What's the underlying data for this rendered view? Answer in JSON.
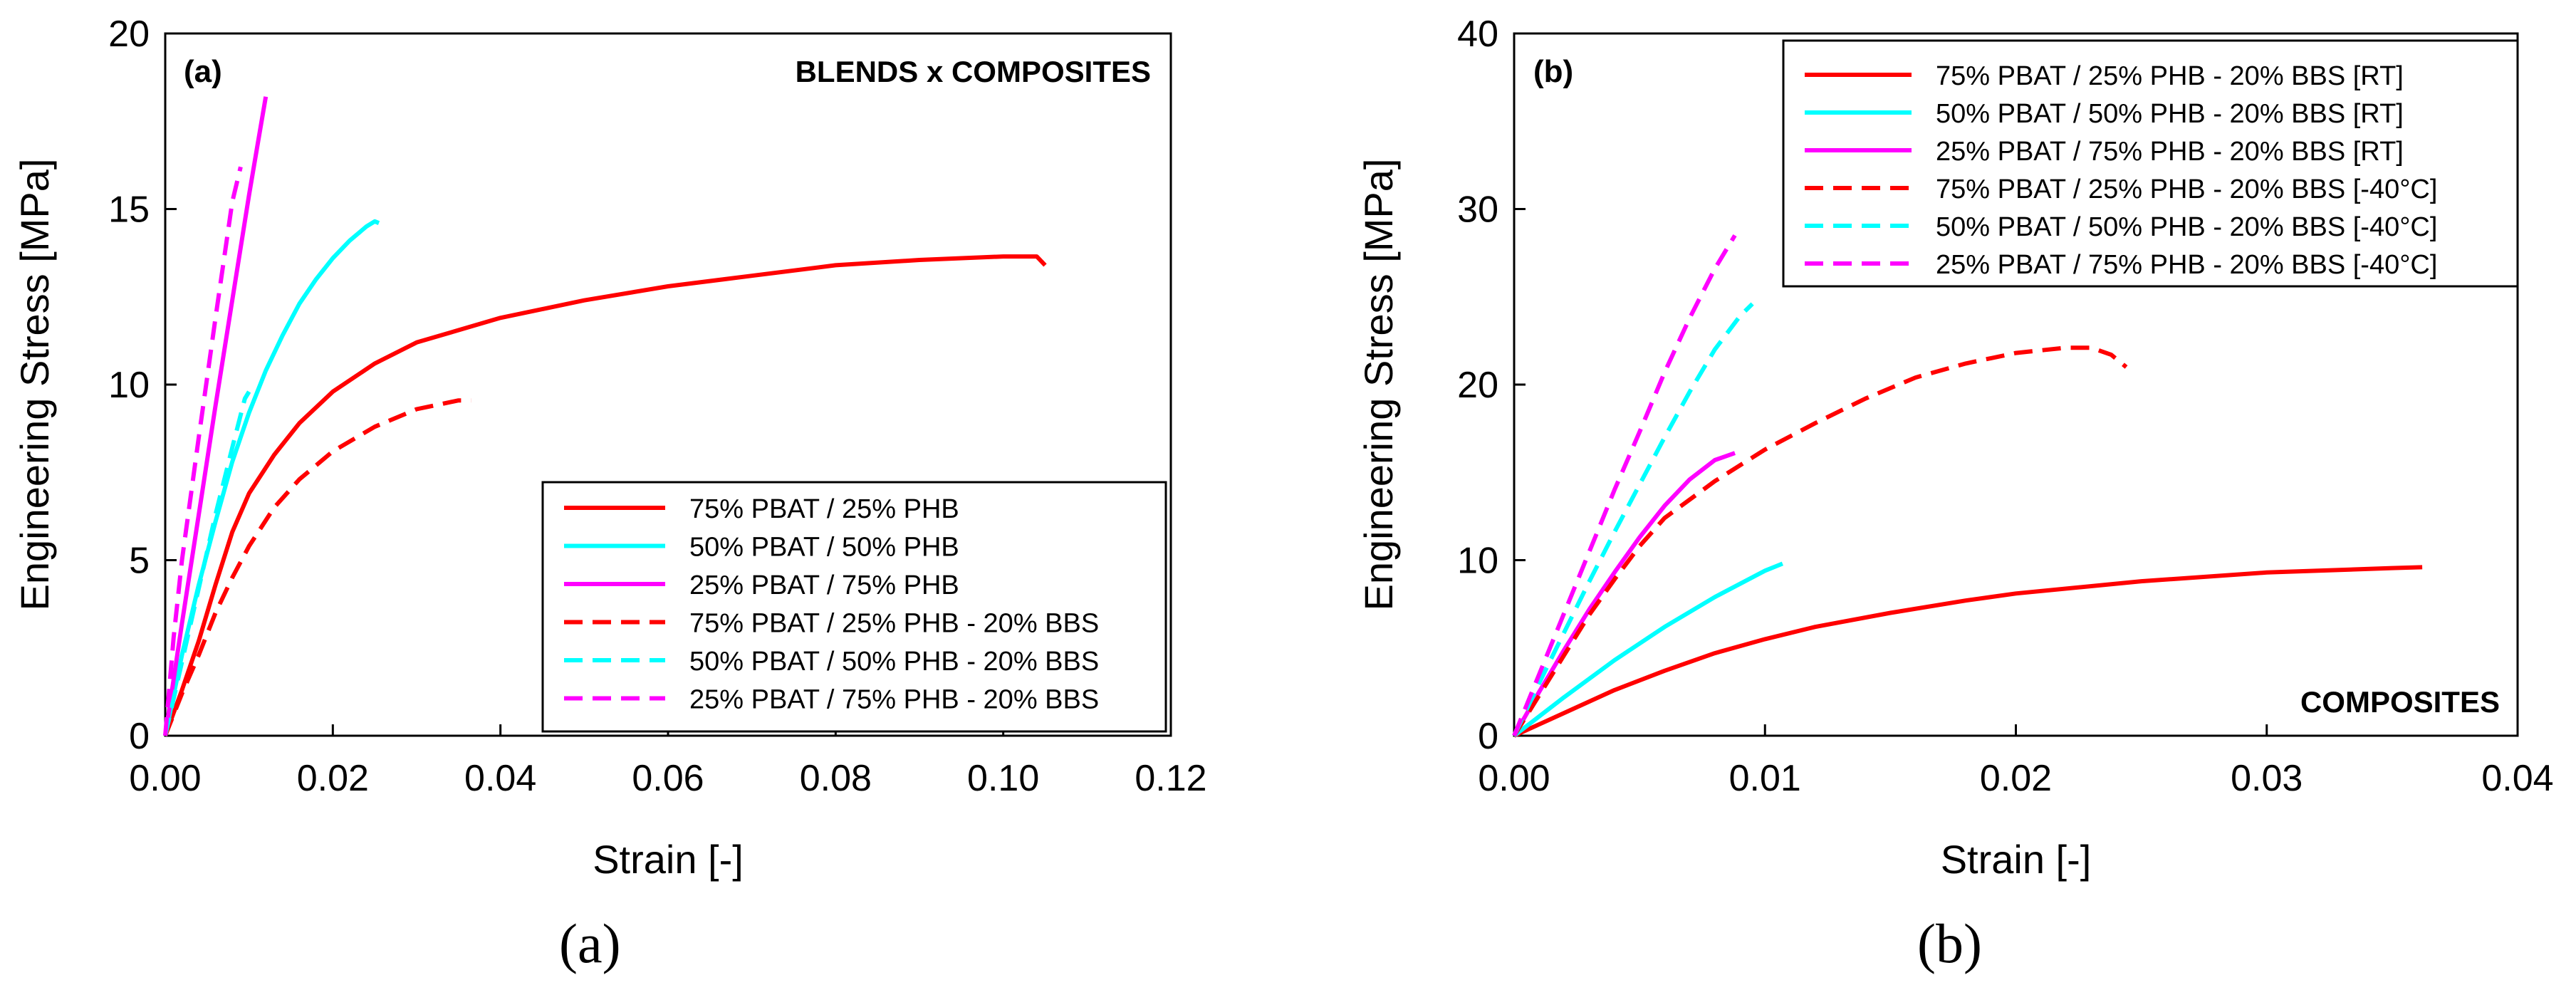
{
  "chart_data": [
    {
      "type": "line",
      "panel_label": "(a)",
      "annotation": "BLENDS x COMPOSITES",
      "caption": "(a)",
      "xlabel": "Strain [-]",
      "ylabel": "Engineering Stress [MPa]",
      "xlim": [
        0,
        0.12
      ],
      "ylim": [
        0,
        20
      ],
      "xticks": [
        0,
        0.02,
        0.04,
        0.06,
        0.08,
        0.1,
        0.12
      ],
      "xtick_labels": [
        "0.00",
        "0.02",
        "0.04",
        "0.06",
        "0.08",
        "0.10",
        "0.12"
      ],
      "yticks": [
        0,
        5,
        10,
        15,
        20
      ],
      "ytick_labels": [
        "0",
        "5",
        "10",
        "15",
        "20"
      ],
      "legend_position": "lower-right",
      "series": [
        {
          "name": "75% PBAT / 25% PHB",
          "color": "#ff0000",
          "dash": "solid",
          "points": [
            [
              0,
              0
            ],
            [
              0.002,
              1.3
            ],
            [
              0.004,
              2.7
            ],
            [
              0.006,
              4.3
            ],
            [
              0.008,
              5.8
            ],
            [
              0.01,
              6.9
            ],
            [
              0.013,
              8.0
            ],
            [
              0.016,
              8.9
            ],
            [
              0.02,
              9.8
            ],
            [
              0.025,
              10.6
            ],
            [
              0.03,
              11.2
            ],
            [
              0.04,
              11.9
            ],
            [
              0.05,
              12.4
            ],
            [
              0.06,
              12.8
            ],
            [
              0.07,
              13.1
            ],
            [
              0.08,
              13.4
            ],
            [
              0.09,
              13.55
            ],
            [
              0.1,
              13.65
            ],
            [
              0.104,
              13.65
            ],
            [
              0.105,
              13.4
            ]
          ]
        },
        {
          "name": "50% PBAT / 50% PHB",
          "color": "#00ffff",
          "dash": "solid",
          "points": [
            [
              0,
              0
            ],
            [
              0.002,
              2.3
            ],
            [
              0.004,
              4.3
            ],
            [
              0.006,
              6.1
            ],
            [
              0.008,
              7.8
            ],
            [
              0.01,
              9.2
            ],
            [
              0.012,
              10.4
            ],
            [
              0.014,
              11.4
            ],
            [
              0.016,
              12.3
            ],
            [
              0.018,
              13.0
            ],
            [
              0.02,
              13.6
            ],
            [
              0.022,
              14.1
            ],
            [
              0.024,
              14.5
            ],
            [
              0.025,
              14.65
            ],
            [
              0.0255,
              14.6
            ]
          ]
        },
        {
          "name": "25% PBAT / 75% PHB",
          "color": "#ff00ff",
          "dash": "solid",
          "points": [
            [
              0,
              0
            ],
            [
              0.002,
              3.2
            ],
            [
              0.004,
              6.3
            ],
            [
              0.006,
              9.4
            ],
            [
              0.008,
              12.4
            ],
            [
              0.01,
              15.4
            ],
            [
              0.011,
              16.8
            ],
            [
              0.012,
              18.2
            ]
          ]
        },
        {
          "name": "75% PBAT / 25% PHB - 20% BBS",
          "color": "#ff0000",
          "dash": "dashed",
          "points": [
            [
              0,
              0
            ],
            [
              0.002,
              1.2
            ],
            [
              0.004,
              2.3
            ],
            [
              0.006,
              3.5
            ],
            [
              0.008,
              4.5
            ],
            [
              0.01,
              5.4
            ],
            [
              0.013,
              6.5
            ],
            [
              0.016,
              7.3
            ],
            [
              0.02,
              8.1
            ],
            [
              0.025,
              8.8
            ],
            [
              0.03,
              9.3
            ],
            [
              0.035,
              9.55
            ],
            [
              0.0365,
              9.55
            ]
          ]
        },
        {
          "name": "50% PBAT / 50% PHB - 20% BBS",
          "color": "#00ffff",
          "dash": "dashed",
          "points": [
            [
              0,
              0
            ],
            [
              0.002,
              2.1
            ],
            [
              0.004,
              4.2
            ],
            [
              0.006,
              6.3
            ],
            [
              0.008,
              8.2
            ],
            [
              0.0095,
              9.6
            ],
            [
              0.01,
              9.8
            ]
          ]
        },
        {
          "name": "25% PBAT / 75% PHB - 20% BBS",
          "color": "#ff00ff",
          "dash": "dashed",
          "points": [
            [
              0,
              0
            ],
            [
              0.001,
              2.8
            ],
            [
              0.002,
              5.0
            ],
            [
              0.004,
              8.5
            ],
            [
              0.006,
              11.9
            ],
            [
              0.008,
              15.2
            ],
            [
              0.009,
              16.2
            ]
          ]
        }
      ]
    },
    {
      "type": "line",
      "panel_label": "(b)",
      "annotation": "COMPOSITES",
      "caption": "(b)",
      "xlabel": "Strain [-]",
      "ylabel": "Engineering Stress [MPa]",
      "xlim": [
        0,
        0.04
      ],
      "ylim": [
        0,
        40
      ],
      "xticks": [
        0,
        0.01,
        0.02,
        0.03,
        0.04
      ],
      "xtick_labels": [
        "0.00",
        "0.01",
        "0.02",
        "0.03",
        "0.04"
      ],
      "yticks": [
        0,
        10,
        20,
        30,
        40
      ],
      "ytick_labels": [
        "0",
        "10",
        "20",
        "30",
        "40"
      ],
      "legend_position": "top-right",
      "series": [
        {
          "name": "75% PBAT / 25% PHB - 20% BBS [RT]",
          "color": "#ff0000",
          "dash": "solid",
          "points": [
            [
              0,
              0
            ],
            [
              0.002,
              1.3
            ],
            [
              0.004,
              2.6
            ],
            [
              0.006,
              3.7
            ],
            [
              0.008,
              4.7
            ],
            [
              0.01,
              5.5
            ],
            [
              0.012,
              6.2
            ],
            [
              0.015,
              7.0
            ],
            [
              0.018,
              7.7
            ],
            [
              0.02,
              8.1
            ],
            [
              0.025,
              8.8
            ],
            [
              0.03,
              9.3
            ],
            [
              0.035,
              9.55
            ],
            [
              0.0362,
              9.6
            ]
          ]
        },
        {
          "name": "50% PBAT / 50% PHB - 20% BBS [RT]",
          "color": "#00ffff",
          "dash": "solid",
          "points": [
            [
              0,
              0
            ],
            [
              0.002,
              2.2
            ],
            [
              0.004,
              4.3
            ],
            [
              0.006,
              6.2
            ],
            [
              0.008,
              7.9
            ],
            [
              0.01,
              9.4
            ],
            [
              0.0107,
              9.8
            ]
          ]
        },
        {
          "name": "25% PBAT / 75% PHB - 20% BBS [RT]",
          "color": "#ff00ff",
          "dash": "solid",
          "points": [
            [
              0,
              0
            ],
            [
              0.001,
              2.5
            ],
            [
              0.002,
              4.9
            ],
            [
              0.003,
              7.2
            ],
            [
              0.004,
              9.3
            ],
            [
              0.005,
              11.3
            ],
            [
              0.006,
              13.1
            ],
            [
              0.007,
              14.6
            ],
            [
              0.008,
              15.7
            ],
            [
              0.0088,
              16.1
            ]
          ]
        },
        {
          "name": "75% PBAT / 25% PHB - 20% BBS [-40°C]",
          "color": "#ff0000",
          "dash": "dashed",
          "points": [
            [
              0,
              0
            ],
            [
              0.001,
              2.3
            ],
            [
              0.002,
              4.6
            ],
            [
              0.003,
              6.9
            ],
            [
              0.004,
              8.9
            ],
            [
              0.005,
              10.8
            ],
            [
              0.006,
              12.4
            ],
            [
              0.008,
              14.5
            ],
            [
              0.01,
              16.3
            ],
            [
              0.012,
              17.8
            ],
            [
              0.014,
              19.2
            ],
            [
              0.016,
              20.4
            ],
            [
              0.018,
              21.2
            ],
            [
              0.02,
              21.8
            ],
            [
              0.022,
              22.1
            ],
            [
              0.023,
              22.1
            ],
            [
              0.0238,
              21.7
            ],
            [
              0.0244,
              21.0
            ]
          ]
        },
        {
          "name": "50% PBAT / 50% PHB - 20% BBS [-40°C]",
          "color": "#00ffff",
          "dash": "dashed",
          "points": [
            [
              0,
              0
            ],
            [
              0.001,
              3.0
            ],
            [
              0.002,
              5.9
            ],
            [
              0.003,
              8.8
            ],
            [
              0.004,
              11.6
            ],
            [
              0.005,
              14.3
            ],
            [
              0.006,
              17.0
            ],
            [
              0.007,
              19.6
            ],
            [
              0.008,
              22.0
            ],
            [
              0.009,
              23.9
            ],
            [
              0.0095,
              24.6
            ]
          ]
        },
        {
          "name": "25% PBAT / 75% PHB - 20% BBS [-40°C]",
          "color": "#ff00ff",
          "dash": "dashed",
          "points": [
            [
              0,
              0
            ],
            [
              0.001,
              3.5
            ],
            [
              0.002,
              7.0
            ],
            [
              0.003,
              10.5
            ],
            [
              0.004,
              14.0
            ],
            [
              0.005,
              17.3
            ],
            [
              0.006,
              20.7
            ],
            [
              0.007,
              23.8
            ],
            [
              0.008,
              26.6
            ],
            [
              0.0088,
              28.5
            ]
          ]
        }
      ]
    }
  ]
}
